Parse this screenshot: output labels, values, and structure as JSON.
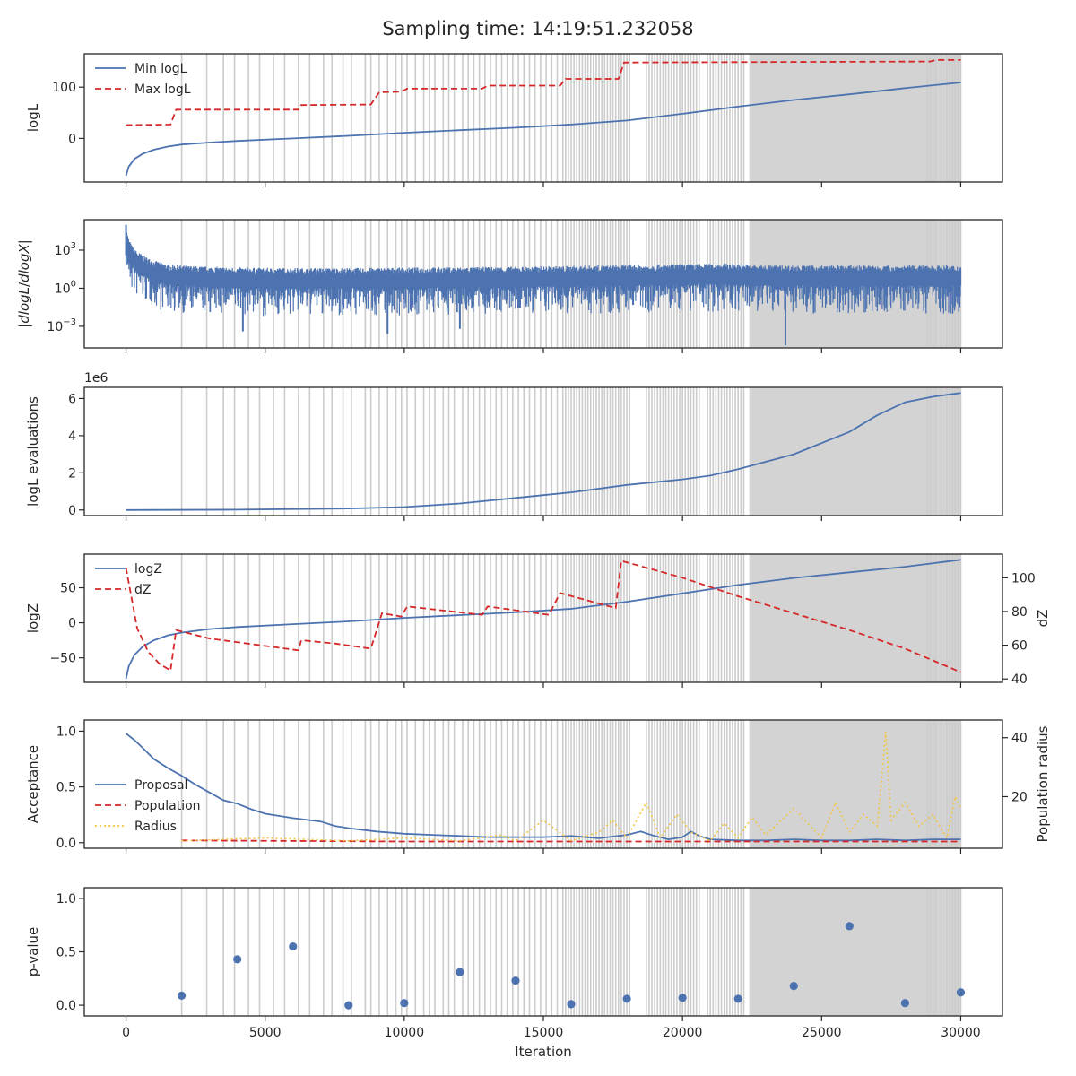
{
  "figure": {
    "title": "Sampling time: 14:19:51.232058"
  },
  "colors": {
    "blue": "#4c72b0",
    "red": "#d62728",
    "yellow": "#f4c542",
    "insertion": "#cccccc",
    "axis": "#262626"
  },
  "chart_data": [
    {
      "id": "logl",
      "type": "line",
      "ylabel": "logL",
      "xlim": [
        -1500,
        31500
      ],
      "ylim": [
        -85,
        165
      ],
      "yticks": [
        {
          "v": 0,
          "label": "0"
        },
        {
          "v": 100,
          "label": "100"
        }
      ],
      "legend": {
        "placement": "top-left",
        "entries": [
          "Min logL",
          "Max logL"
        ]
      },
      "series": [
        {
          "name": "Min logL",
          "style": "solid",
          "color": "blue",
          "x": [
            0,
            100,
            300,
            600,
            1000,
            1500,
            2000,
            3000,
            4000,
            6000,
            8000,
            10000,
            12000,
            14000,
            16000,
            18000,
            20000,
            22000,
            24000,
            26000,
            28000,
            30000
          ],
          "y": [
            -73,
            -55,
            -40,
            -30,
            -22,
            -16,
            -12,
            -8,
            -5,
            0,
            5,
            11,
            16,
            21,
            27,
            35,
            48,
            62,
            75,
            86,
            98,
            109
          ]
        },
        {
          "name": "Max logL",
          "style": "dashed",
          "color": "red",
          "x": [
            0,
            1600,
            1800,
            6200,
            6300,
            8800,
            9100,
            9900,
            10100,
            12800,
            13000,
            15600,
            15800,
            17700,
            17900,
            28900,
            29100,
            30000
          ],
          "y": [
            26,
            27,
            56,
            56,
            65,
            66,
            90,
            91,
            97,
            97,
            103,
            103,
            116,
            116,
            148,
            150,
            153,
            153
          ]
        }
      ]
    },
    {
      "id": "dlogl",
      "type": "line",
      "ylabel": "|dlogL/dlogX|",
      "yscale": "log",
      "xlim": [
        -1500,
        31500
      ],
      "ylim": [
        -4.7,
        5.4
      ],
      "yticks": [
        {
          "v": 3,
          "base": "10",
          "exp": "3"
        },
        {
          "v": 0,
          "base": "10",
          "exp": "0"
        },
        {
          "v": -3,
          "base": "10",
          "exp": "−3"
        }
      ],
      "series": [
        {
          "name": "|dlogL/dlogX|",
          "style": "solid",
          "color": "blue",
          "band": true,
          "x": [
            0,
            30,
            100,
            200,
            400,
            700,
            1000,
            1500,
            2000,
            3000,
            5000,
            8000,
            11000,
            14000,
            17000,
            20000,
            21500,
            22500,
            24000,
            27000,
            30000
          ],
          "center": [
            4.2,
            3.6,
            3.0,
            2.5,
            2.0,
            1.6,
            1.3,
            1.0,
            0.9,
            0.8,
            0.7,
            0.7,
            0.75,
            0.8,
            0.9,
            1.0,
            1.05,
            0.95,
            0.9,
            0.9,
            0.9
          ],
          "lower_spikes": [
            {
              "x": 23700,
              "y": -4.5
            },
            {
              "x": 9400,
              "y": -3.6
            },
            {
              "x": 4200,
              "y": -3.4
            },
            {
              "x": 12000,
              "y": -3.2
            }
          ]
        }
      ]
    },
    {
      "id": "evals",
      "type": "line",
      "ylabel": "logL evaluations",
      "offset_label": "1e6",
      "xlim": [
        -1500,
        31500
      ],
      "ylim": [
        -0.3,
        6.6
      ],
      "yticks": [
        {
          "v": 0,
          "label": "0"
        },
        {
          "v": 2,
          "label": "2"
        },
        {
          "v": 4,
          "label": "4"
        },
        {
          "v": 6,
          "label": "6"
        }
      ],
      "series": [
        {
          "name": "logL evaluations",
          "style": "solid",
          "color": "blue",
          "x": [
            0,
            4000,
            8000,
            10000,
            12000,
            14000,
            16000,
            18000,
            20000,
            21000,
            22000,
            24000,
            26000,
            27000,
            28000,
            29000,
            30000
          ],
          "y": [
            0.0,
            0.02,
            0.08,
            0.16,
            0.35,
            0.65,
            0.95,
            1.35,
            1.65,
            1.85,
            2.2,
            3.0,
            4.2,
            5.1,
            5.8,
            6.1,
            6.3
          ]
        }
      ]
    },
    {
      "id": "logz",
      "type": "line",
      "ylabel": "logZ",
      "ylabel2": "dZ",
      "xlim": [
        -1500,
        31500
      ],
      "ylim": [
        -85,
        98
      ],
      "ylim2": [
        38,
        114
      ],
      "yticks": [
        {
          "v": -50,
          "label": "−50"
        },
        {
          "v": 0,
          "label": "0"
        },
        {
          "v": 50,
          "label": "50"
        }
      ],
      "yticks2": [
        {
          "v": 40,
          "label": "40"
        },
        {
          "v": 60,
          "label": "60"
        },
        {
          "v": 80,
          "label": "80"
        },
        {
          "v": 100,
          "label": "100"
        }
      ],
      "legend": {
        "placement": "top-left",
        "entries": [
          "logZ",
          "dZ"
        ]
      },
      "series": [
        {
          "name": "logZ",
          "style": "solid",
          "color": "blue",
          "axis": "left",
          "x": [
            0,
            100,
            300,
            600,
            1000,
            1500,
            2000,
            3000,
            4000,
            6000,
            8000,
            10000,
            12000,
            14000,
            16000,
            18000,
            20000,
            22000,
            24000,
            26000,
            28000,
            30000
          ],
          "y": [
            -80,
            -62,
            -46,
            -34,
            -25,
            -18,
            -14,
            -9,
            -6,
            -2,
            2,
            7,
            11,
            15,
            20,
            30,
            42,
            54,
            64,
            72,
            80,
            90
          ]
        },
        {
          "name": "dZ",
          "style": "dashed",
          "color": "red",
          "axis": "right",
          "x": [
            0,
            400,
            800,
            1200,
            1600,
            1800,
            3000,
            6200,
            6300,
            7500,
            8800,
            9200,
            9900,
            10100,
            12800,
            13000,
            15200,
            15600,
            17600,
            17800,
            20000,
            22000,
            24000,
            26000,
            28000,
            30000
          ],
          "y": [
            106,
            70,
            56,
            49,
            45,
            69,
            64,
            57,
            63,
            61,
            58,
            79,
            77,
            83,
            78,
            83,
            78,
            91,
            82,
            110,
            100,
            89,
            79,
            69,
            58,
            44
          ]
        }
      ]
    },
    {
      "id": "accept",
      "type": "line",
      "ylabel": "Acceptance",
      "ylabel2": "Population radius",
      "xlim": [
        -1500,
        31500
      ],
      "ylim": [
        -0.05,
        1.1
      ],
      "ylim2": [
        2.5,
        46
      ],
      "yticks": [
        {
          "v": 0,
          "label": "0.0"
        },
        {
          "v": 0.5,
          "label": "0.5"
        },
        {
          "v": 1.0,
          "label": "1.0"
        }
      ],
      "yticks2": [
        {
          "v": 20,
          "label": "20"
        },
        {
          "v": 40,
          "label": "40"
        }
      ],
      "legend": {
        "placement": "center-left",
        "entries": [
          "Proposal",
          "Population",
          "Radius"
        ]
      },
      "series": [
        {
          "name": "Proposal",
          "style": "solid",
          "color": "blue",
          "axis": "left",
          "x": [
            0,
            300,
            600,
            1000,
            1500,
            2000,
            2500,
            3000,
            3500,
            4000,
            4500,
            5000,
            6000,
            7000,
            7500,
            8000,
            9000,
            10000,
            11000,
            12000,
            13000,
            14000,
            15000,
            16000,
            17000,
            18000,
            18500,
            19000,
            19500,
            20000,
            20300,
            20600,
            21000,
            22000,
            23000,
            24000,
            25000,
            26000,
            27000,
            28000,
            29000,
            30000
          ],
          "y": [
            0.98,
            0.92,
            0.85,
            0.75,
            0.67,
            0.6,
            0.52,
            0.45,
            0.38,
            0.35,
            0.3,
            0.26,
            0.22,
            0.19,
            0.15,
            0.13,
            0.1,
            0.08,
            0.07,
            0.06,
            0.05,
            0.05,
            0.05,
            0.06,
            0.04,
            0.07,
            0.1,
            0.06,
            0.03,
            0.05,
            0.1,
            0.06,
            0.03,
            0.02,
            0.02,
            0.03,
            0.02,
            0.02,
            0.03,
            0.02,
            0.03,
            0.03
          ]
        },
        {
          "name": "Population",
          "style": "dashed",
          "color": "red",
          "axis": "left",
          "x": [
            2000,
            10000,
            20000,
            30000
          ],
          "y": [
            0.02,
            0.01,
            0.01,
            0.01
          ]
        },
        {
          "name": "Radius",
          "style": "dotted",
          "color": "yellow",
          "axis": "right",
          "x": [
            2000,
            5000,
            8000,
            10000,
            12000,
            13500,
            14000,
            15000,
            16000,
            17000,
            17500,
            18000,
            18700,
            19200,
            19800,
            20300,
            21000,
            21500,
            22000,
            22500,
            23000,
            24000,
            25000,
            25500,
            26000,
            26500,
            27000,
            27300,
            27500,
            28000,
            28500,
            29000,
            29500,
            29800,
            30000
          ],
          "y": [
            5,
            6,
            5,
            6,
            5,
            7,
            5,
            12,
            5,
            8,
            12,
            6,
            18,
            6,
            14,
            8,
            5,
            11,
            6,
            13,
            7,
            16,
            6,
            18,
            8,
            14,
            10,
            42,
            12,
            18,
            10,
            14,
            6,
            20,
            16
          ]
        }
      ]
    },
    {
      "id": "pvalue",
      "type": "scatter",
      "ylabel": "p-value",
      "xlabel": "Iteration",
      "xlim": [
        -1500,
        31500
      ],
      "ylim": [
        -0.1,
        1.1
      ],
      "yticks": [
        {
          "v": 0,
          "label": "0.0"
        },
        {
          "v": 0.5,
          "label": "0.5"
        },
        {
          "v": 1.0,
          "label": "1.0"
        }
      ],
      "xticks": [
        {
          "v": 0,
          "label": "0"
        },
        {
          "v": 5000,
          "label": "5000"
        },
        {
          "v": 10000,
          "label": "10000"
        },
        {
          "v": 15000,
          "label": "15000"
        },
        {
          "v": 20000,
          "label": "20000"
        },
        {
          "v": 25000,
          "label": "25000"
        },
        {
          "v": 30000,
          "label": "30000"
        }
      ],
      "series": [
        {
          "name": "p-value",
          "color": "blue",
          "x": [
            2000,
            4000,
            6000,
            8000,
            10000,
            12000,
            14000,
            16000,
            18000,
            20000,
            22000,
            24000,
            26000,
            28000,
            30000
          ],
          "y": [
            0.09,
            0.43,
            0.55,
            0.0,
            0.02,
            0.31,
            0.23,
            0.01,
            0.06,
            0.07,
            0.06,
            0.18,
            0.74,
            0.02,
            0.12
          ]
        }
      ]
    }
  ],
  "insertion_lines": {
    "x": [
      2000,
      2900,
      3500,
      3900,
      4400,
      4800,
      5300,
      5700,
      6200,
      6600,
      7100,
      7400,
      7800,
      8100,
      8600,
      8800,
      9100,
      9400,
      9700,
      9900,
      10100,
      10400,
      10700,
      10900,
      11100,
      11400,
      11600,
      11800,
      12100,
      12300,
      12500,
      12700,
      12900,
      13100,
      13300,
      13500,
      13700,
      13900,
      14100,
      14300,
      14500,
      14700,
      14900,
      15100,
      15300,
      15500,
      15700,
      15800,
      15900,
      16000,
      16100,
      16200,
      16300,
      16400,
      16500,
      16600,
      16700,
      16800,
      16900,
      17000,
      17100,
      17200,
      17300,
      17400,
      17500,
      17600,
      17700,
      17800,
      17900,
      18000,
      18100,
      18700,
      18800,
      18900,
      19000,
      19100,
      19200,
      19300,
      19400,
      19500,
      19600,
      19700,
      19800,
      19900,
      20000,
      20100,
      20200,
      20300,
      20400,
      20500,
      20600,
      20900,
      21000,
      21100,
      21200,
      21300,
      21400,
      21500,
      21600,
      21700,
      21800,
      21900,
      22000,
      22100,
      22200,
      28800,
      28900,
      29000,
      29100,
      29300,
      29500,
      29600,
      29700,
      29800,
      29900,
      30000
    ],
    "shaded_span": [
      22400,
      30000
    ]
  }
}
